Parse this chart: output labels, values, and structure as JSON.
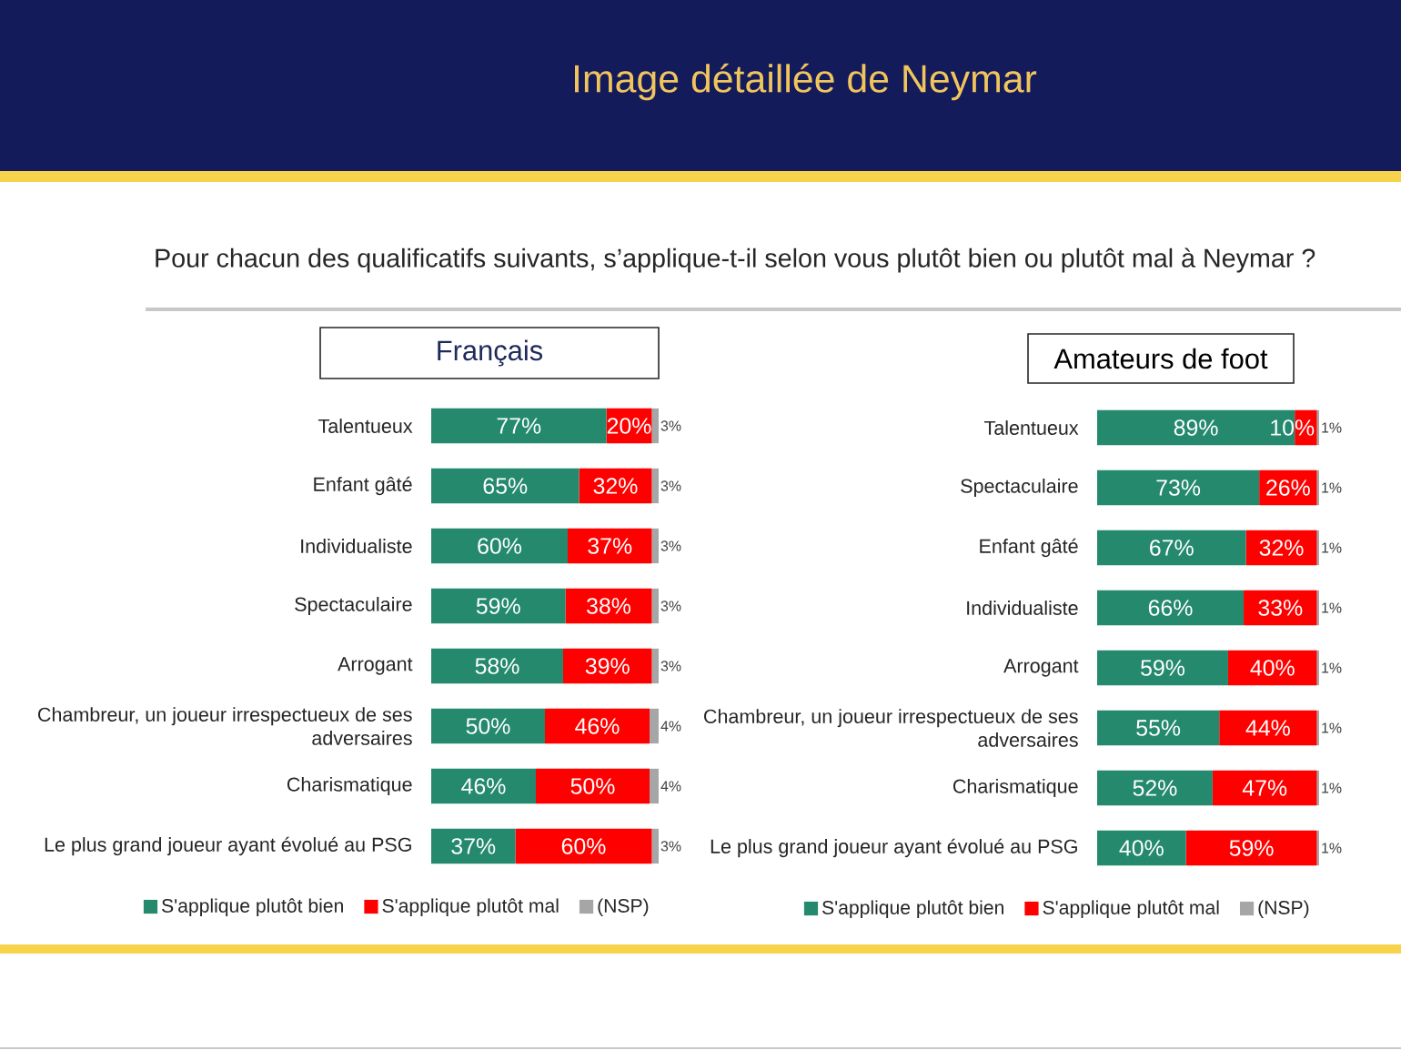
{
  "chart_data": [
    {
      "type": "bar",
      "orientation": "horizontal",
      "stacked": true,
      "title": "Français",
      "annotations": [
        "Image détaillée de Neymar",
        "Pour chacun des qualificatifs suivants, s’applique-t-il selon vous plutôt bien ou plutôt mal à Neymar ?"
      ],
      "categories": [
        "Talentueux",
        "Enfant gâté",
        "Individualiste",
        "Spectaculaire",
        "Arrogant",
        "Chambreur, un joueur irrespectueux de ses adversaires",
        "Charismatique",
        "Le plus grand joueur ayant évolué au PSG"
      ],
      "series": [
        {
          "name": "S'applique plutôt bien",
          "color": "#24896d",
          "values": [
            77,
            65,
            60,
            59,
            58,
            50,
            46,
            37
          ],
          "value_labels": [
            "77%",
            "65%",
            "60%",
            "59%",
            "58%",
            "50%",
            "46%",
            "37%"
          ]
        },
        {
          "name": "S'applique plutôt mal",
          "color": "#ff0000",
          "values": [
            20,
            32,
            37,
            38,
            39,
            46,
            50,
            60
          ],
          "value_labels": [
            "20%",
            "32%",
            "37%",
            "38%",
            "39%",
            "46%",
            "50%",
            "60%"
          ]
        },
        {
          "name": "(NSP)",
          "color": "#a6a6a6",
          "values": [
            3,
            3,
            3,
            3,
            3,
            4,
            4,
            3
          ],
          "value_labels": [
            "3%",
            "3%",
            "3%",
            "3%",
            "3%",
            "4%",
            "4%",
            "3%"
          ]
        }
      ],
      "legend": "bottom",
      "tick_labels": "y"
    },
    {
      "type": "bar",
      "orientation": "horizontal",
      "stacked": true,
      "title": "Amateurs de foot",
      "categories": [
        "Talentueux",
        "Spectaculaire",
        "Enfant gâté",
        "Individualiste",
        "Arrogant",
        "Chambreur, un joueur irrespectueux de ses adversaires",
        "Charismatique",
        "Le plus grand joueur ayant évolué au PSG"
      ],
      "series": [
        {
          "name": "S'applique plutôt bien",
          "color": "#24896d",
          "values": [
            89,
            73,
            67,
            66,
            59,
            55,
            52,
            40
          ],
          "value_labels": [
            "89%",
            "73%",
            "67%",
            "66%",
            "59%",
            "55%",
            "52%",
            "40%"
          ]
        },
        {
          "name": "S'applique plutôt mal",
          "color": "#ff0000",
          "values": [
            10,
            26,
            32,
            33,
            40,
            44,
            47,
            59
          ],
          "value_labels": [
            "10%",
            "26%",
            "32%",
            "33%",
            "40%",
            "44%",
            "47%",
            "59%"
          ]
        },
        {
          "name": "(NSP)",
          "color": "#a6a6a6",
          "values": [
            1,
            1,
            1,
            1,
            1,
            1,
            1,
            1
          ],
          "value_labels": [
            "1%",
            "1%",
            "1%",
            "1%",
            "1%",
            "1%",
            "1%",
            "1%"
          ]
        }
      ],
      "legend": "bottom",
      "tick_labels": "y"
    }
  ]
}
